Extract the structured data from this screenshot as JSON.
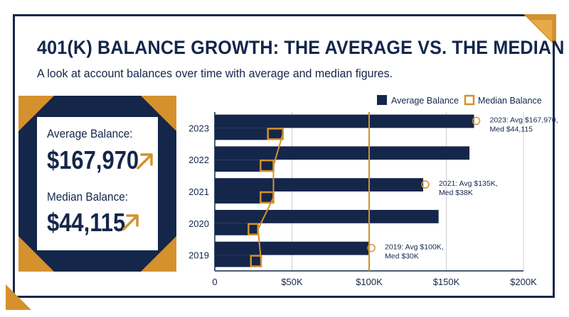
{
  "title": "401(K) BALANCE GROWTH: THE AVERAGE VS. THE MEDIAN",
  "subtitle": "A look at account balances over time with average and median figures.",
  "kpis": {
    "average_label": "Average Balance:",
    "average_value": "$167,970",
    "median_label": "Median Balance:",
    "median_value": "$44,115",
    "arrow_icon": "arrow-up-right-icon"
  },
  "colors": {
    "navy": "#14264a",
    "gold": "#d4912e",
    "grid": "#cfcfcf"
  },
  "chart_data": {
    "type": "bar",
    "orientation": "horizontal",
    "title": "",
    "xlabel": "",
    "ylabel": "",
    "xlim": [
      0,
      200000
    ],
    "x_ticks": [
      0,
      50000,
      100000,
      150000,
      200000
    ],
    "x_tick_labels": [
      "0",
      "$50K",
      "$100K",
      "$150K",
      "$200K"
    ],
    "categories": [
      "2023",
      "2022",
      "2021",
      "2020",
      "2019"
    ],
    "series": [
      {
        "name": "Average Balance",
        "color": "#14264a",
        "style": "filled",
        "values": [
          167970,
          165000,
          135000,
          145000,
          100000
        ]
      },
      {
        "name": "Median Balance",
        "color": "#d4912e",
        "style": "outlined",
        "values": [
          44115,
          38000,
          38000,
          28000,
          30000
        ]
      }
    ],
    "grid": true,
    "legend": "top-right",
    "annotations": [
      {
        "category": "2023",
        "lines": [
          "2023: Avg $167,970,",
          "Med $44,115"
        ]
      },
      {
        "category": "2021",
        "lines": [
          "2021: Avg $135K,",
          "Med $38K"
        ]
      },
      {
        "category": "2019",
        "lines": [
          "2019: Avg $100K,",
          "Med $30K"
        ]
      }
    ]
  }
}
